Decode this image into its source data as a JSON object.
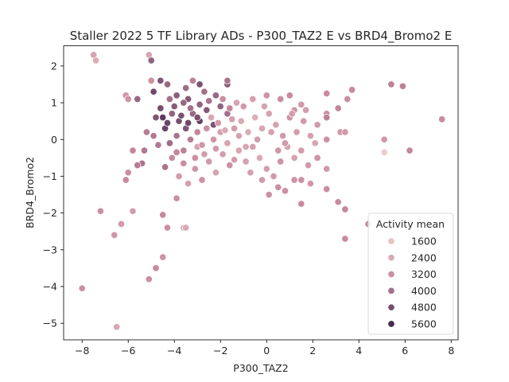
{
  "chart_data": {
    "type": "scatter",
    "title": "Staller 2022 5 TF Library ADs - P300_TAZ2 E vs BRD4_Bromo2 E",
    "xlabel": "P300_TAZ2",
    "ylabel": "BRD4_Bromo2",
    "xlim": [
      -8.8,
      8.3
    ],
    "ylim": [
      -5.45,
      2.55
    ],
    "xticks": [
      -8,
      -6,
      -4,
      -2,
      0,
      2,
      4,
      6,
      8
    ],
    "yticks": [
      -5,
      -4,
      -3,
      -2,
      -1,
      0,
      1,
      2
    ],
    "grid": false,
    "legend": {
      "title": "Activity mean",
      "placement": "lower-right",
      "entries": [
        {
          "label": "1600",
          "value": 1600
        },
        {
          "label": "2400",
          "value": 2400
        },
        {
          "label": "3200",
          "value": 3200
        },
        {
          "label": "4000",
          "value": 4000
        },
        {
          "label": "4800",
          "value": 4800
        },
        {
          "label": "5600",
          "value": 5600
        }
      ]
    },
    "color_scale": {
      "min": 800,
      "max": 6000,
      "low_color": "#f4dcd6",
      "mid_color": "#c98a9f",
      "high_color": "#2d1a42"
    },
    "points": [
      {
        "x": -7.5,
        "y": 2.3,
        "v": 2600
      },
      {
        "x": -7.4,
        "y": 2.15,
        "v": 2300
      },
      {
        "x": -5.1,
        "y": 2.3,
        "v": 2500
      },
      {
        "x": -5.0,
        "y": 2.15,
        "v": 4300
      },
      {
        "x": -8.0,
        "y": -4.05,
        "v": 3200
      },
      {
        "x": -6.5,
        "y": -5.1,
        "v": 2500
      },
      {
        "x": -7.2,
        "y": -1.95,
        "v": 3300
      },
      {
        "x": -6.6,
        "y": -2.6,
        "v": 3000
      },
      {
        "x": -6.3,
        "y": -2.3,
        "v": 2900
      },
      {
        "x": -5.8,
        "y": -1.95,
        "v": 2800
      },
      {
        "x": -5.1,
        "y": -3.8,
        "v": 3300
      },
      {
        "x": -4.8,
        "y": -3.5,
        "v": 3400
      },
      {
        "x": -4.5,
        "y": -3.2,
        "v": 3100
      },
      {
        "x": -4.3,
        "y": -2.4,
        "v": 3200
      },
      {
        "x": -4.5,
        "y": -2.05,
        "v": 3400
      },
      {
        "x": -3.9,
        "y": -1.6,
        "v": 3300
      },
      {
        "x": -3.6,
        "y": -2.4,
        "v": 2200
      },
      {
        "x": -3.5,
        "y": -2.4,
        "v": 2400
      },
      {
        "x": -6.1,
        "y": 1.2,
        "v": 3000
      },
      {
        "x": -6.0,
        "y": 1.1,
        "v": 3100
      },
      {
        "x": -5.6,
        "y": 1.1,
        "v": 4200
      },
      {
        "x": -5.0,
        "y": 1.6,
        "v": 3200
      },
      {
        "x": -4.6,
        "y": 1.6,
        "v": 4600
      },
      {
        "x": -4.9,
        "y": 1.3,
        "v": 4900
      },
      {
        "x": -4.3,
        "y": 1.5,
        "v": 4200
      },
      {
        "x": -4.2,
        "y": 1.1,
        "v": 4000
      },
      {
        "x": -3.9,
        "y": 1.2,
        "v": 4400
      },
      {
        "x": -3.5,
        "y": 1.4,
        "v": 4100
      },
      {
        "x": -3.4,
        "y": 1.1,
        "v": 4500
      },
      {
        "x": -3.2,
        "y": 1.6,
        "v": 3600
      },
      {
        "x": -2.9,
        "y": 1.5,
        "v": 4700
      },
      {
        "x": -1.7,
        "y": 1.5,
        "v": 4500
      },
      {
        "x": -1.7,
        "y": 1.6,
        "v": 3900
      },
      {
        "x": -4.5,
        "y": 0.6,
        "v": 5200
      },
      {
        "x": -4.8,
        "y": 0.6,
        "v": 4600
      },
      {
        "x": -4.4,
        "y": 0.3,
        "v": 5000
      },
      {
        "x": -4.1,
        "y": 0.7,
        "v": 4300
      },
      {
        "x": -3.8,
        "y": 0.5,
        "v": 4800
      },
      {
        "x": -3.5,
        "y": 0.3,
        "v": 4600
      },
      {
        "x": -3.2,
        "y": 0.7,
        "v": 4200
      },
      {
        "x": -2.9,
        "y": 0.5,
        "v": 5100
      },
      {
        "x": -2.6,
        "y": 0.8,
        "v": 4500
      },
      {
        "x": -2.3,
        "y": 0.4,
        "v": 4700
      },
      {
        "x": -2.0,
        "y": 0.9,
        "v": 4300
      },
      {
        "x": -1.7,
        "y": 0.7,
        "v": 4000
      },
      {
        "x": -4.9,
        "y": 0.1,
        "v": 3800
      },
      {
        "x": -4.2,
        "y": -0.1,
        "v": 4100
      },
      {
        "x": -3.9,
        "y": 0.1,
        "v": 3900
      },
      {
        "x": -3.6,
        "y": -0.3,
        "v": 3600
      },
      {
        "x": -3.3,
        "y": 0.0,
        "v": 3700
      },
      {
        "x": -3.0,
        "y": 0.2,
        "v": 3500
      },
      {
        "x": -5.3,
        "y": -0.3,
        "v": 3800
      },
      {
        "x": -5.4,
        "y": -0.65,
        "v": 3900
      },
      {
        "x": -6.0,
        "y": -0.9,
        "v": 3300
      },
      {
        "x": -6.1,
        "y": -1.1,
        "v": 3400
      },
      {
        "x": -5.6,
        "y": -0.7,
        "v": 3700
      },
      {
        "x": -4.4,
        "y": -0.75,
        "v": 3900
      },
      {
        "x": -4.1,
        "y": -0.5,
        "v": 3400
      },
      {
        "x": -3.8,
        "y": -1.0,
        "v": 2800
      },
      {
        "x": -3.4,
        "y": -1.2,
        "v": 2700
      },
      {
        "x": -3.1,
        "y": -0.8,
        "v": 3000
      },
      {
        "x": -2.8,
        "y": -1.1,
        "v": 3100
      },
      {
        "x": -2.5,
        "y": -0.6,
        "v": 2900
      },
      {
        "x": -2.2,
        "y": -0.9,
        "v": 2600
      },
      {
        "x": -1.9,
        "y": -0.4,
        "v": 2800
      },
      {
        "x": -1.6,
        "y": -0.7,
        "v": 3200
      },
      {
        "x": -1.2,
        "y": -0.3,
        "v": 2500
      },
      {
        "x": -0.9,
        "y": -0.6,
        "v": 2700
      },
      {
        "x": -0.6,
        "y": -0.2,
        "v": 2600
      },
      {
        "x": -0.3,
        "y": -0.5,
        "v": 2400
      },
      {
        "x": 0.0,
        "y": -0.8,
        "v": 2800
      },
      {
        "x": 0.3,
        "y": -1.0,
        "v": 2900
      },
      {
        "x": 0.6,
        "y": -0.6,
        "v": 3100
      },
      {
        "x": 0.9,
        "y": -0.2,
        "v": 2700
      },
      {
        "x": 1.2,
        "y": -0.5,
        "v": 2600
      },
      {
        "x": 1.5,
        "y": -0.3,
        "v": 2800
      },
      {
        "x": 1.8,
        "y": -0.7,
        "v": 2900
      },
      {
        "x": 2.1,
        "y": -0.1,
        "v": 2500
      },
      {
        "x": 2.6,
        "y": -0.8,
        "v": 3000
      },
      {
        "x": 0.1,
        "y": -1.5,
        "v": 3200
      },
      {
        "x": 0.5,
        "y": -1.3,
        "v": 3300
      },
      {
        "x": 1.2,
        "y": -1.1,
        "v": 3100
      },
      {
        "x": 1.5,
        "y": -1.1,
        "v": 3200
      },
      {
        "x": 1.5,
        "y": -1.75,
        "v": 3400
      },
      {
        "x": 1.9,
        "y": -1.2,
        "v": 3000
      },
      {
        "x": 2.6,
        "y": -1.35,
        "v": 3300
      },
      {
        "x": 3.1,
        "y": -1.7,
        "v": 3400
      },
      {
        "x": 3.4,
        "y": -1.9,
        "v": 3500
      },
      {
        "x": 3.4,
        "y": -2.7,
        "v": 3400
      },
      {
        "x": 4.4,
        "y": -2.3,
        "v": 3300
      },
      {
        "x": -2.6,
        "y": 0.3,
        "v": 3200
      },
      {
        "x": -2.3,
        "y": 0.0,
        "v": 3000
      },
      {
        "x": -2.0,
        "y": 0.2,
        "v": 2700
      },
      {
        "x": -1.7,
        "y": -0.1,
        "v": 2600
      },
      {
        "x": -1.4,
        "y": 0.3,
        "v": 2800
      },
      {
        "x": -1.1,
        "y": 0.5,
        "v": 2400
      },
      {
        "x": -0.8,
        "y": 0.2,
        "v": 2300
      },
      {
        "x": -0.5,
        "y": 0.6,
        "v": 2200
      },
      {
        "x": -0.2,
        "y": 0.3,
        "v": 2500
      },
      {
        "x": 0.1,
        "y": 0.7,
        "v": 2600
      },
      {
        "x": 0.4,
        "y": 0.4,
        "v": 2700
      },
      {
        "x": 0.7,
        "y": 0.1,
        "v": 2900
      },
      {
        "x": 1.0,
        "y": 0.6,
        "v": 3100
      },
      {
        "x": 1.3,
        "y": 0.2,
        "v": 2800
      },
      {
        "x": 1.6,
        "y": 0.5,
        "v": 3000
      },
      {
        "x": 1.9,
        "y": 0.1,
        "v": 2700
      },
      {
        "x": 2.2,
        "y": 0.4,
        "v": 2900
      },
      {
        "x": -1.9,
        "y": 1.1,
        "v": 3300
      },
      {
        "x": -1.3,
        "y": 1.0,
        "v": 2600
      },
      {
        "x": -1.0,
        "y": 0.9,
        "v": 2900
      },
      {
        "x": -0.6,
        "y": 1.1,
        "v": 2700
      },
      {
        "x": 0.0,
        "y": 1.2,
        "v": 3100
      },
      {
        "x": 0.6,
        "y": 1.1,
        "v": 3300
      },
      {
        "x": 1.0,
        "y": 1.2,
        "v": 3400
      },
      {
        "x": 1.2,
        "y": 0.8,
        "v": 3000
      },
      {
        "x": 1.5,
        "y": 0.95,
        "v": 2900
      },
      {
        "x": 1.1,
        "y": 0.7,
        "v": 2800
      },
      {
        "x": 2.6,
        "y": 1.25,
        "v": 3400
      },
      {
        "x": 2.6,
        "y": 0.7,
        "v": 3300
      },
      {
        "x": 2.6,
        "y": 0.6,
        "v": 3600
      },
      {
        "x": 2.6,
        "y": 0.0,
        "v": 3200
      },
      {
        "x": 3.1,
        "y": 0.85,
        "v": 3500
      },
      {
        "x": 3.2,
        "y": 0.2,
        "v": 3000
      },
      {
        "x": 3.4,
        "y": 0.2,
        "v": 2900
      },
      {
        "x": 3.5,
        "y": 1.1,
        "v": 3300
      },
      {
        "x": 3.7,
        "y": 1.35,
        "v": 3400
      },
      {
        "x": 5.1,
        "y": 0.0,
        "v": 3000
      },
      {
        "x": 5.1,
        "y": -0.35,
        "v": 1300
      },
      {
        "x": 5.4,
        "y": 1.5,
        "v": 3600
      },
      {
        "x": 5.9,
        "y": 1.45,
        "v": 3600
      },
      {
        "x": 6.2,
        "y": -0.3,
        "v": 3500
      },
      {
        "x": 7.6,
        "y": 0.55,
        "v": 3400
      },
      {
        "x": -3.0,
        "y": -0.2,
        "v": 2600
      },
      {
        "x": -2.7,
        "y": -0.4,
        "v": 2800
      },
      {
        "x": -2.4,
        "y": 0.6,
        "v": 2500
      },
      {
        "x": -2.1,
        "y": 0.45,
        "v": 2900
      },
      {
        "x": -1.8,
        "y": 0.25,
        "v": 2400
      },
      {
        "x": -1.5,
        "y": 0.55,
        "v": 2700
      },
      {
        "x": -1.2,
        "y": 0.1,
        "v": 2600
      },
      {
        "x": -0.9,
        "y": -0.2,
        "v": 2500
      },
      {
        "x": -0.4,
        "y": 0.0,
        "v": 2800
      },
      {
        "x": 0.2,
        "y": 0.2,
        "v": 2700
      },
      {
        "x": 0.5,
        "y": -0.3,
        "v": 3000
      },
      {
        "x": 0.8,
        "y": -0.1,
        "v": 2900
      },
      {
        "x": -3.3,
        "y": 0.85,
        "v": 4000
      },
      {
        "x": -2.9,
        "y": 0.95,
        "v": 4300
      },
      {
        "x": -2.5,
        "y": 1.05,
        "v": 3900
      },
      {
        "x": -2.2,
        "y": 1.2,
        "v": 4200
      },
      {
        "x": -4.0,
        "y": 0.9,
        "v": 4500
      },
      {
        "x": -3.7,
        "y": 0.65,
        "v": 4700
      },
      {
        "x": -3.4,
        "y": 0.45,
        "v": 4900
      },
      {
        "x": -4.6,
        "y": 0.85,
        "v": 4800
      },
      {
        "x": -5.8,
        "y": -0.3,
        "v": 3500
      },
      {
        "x": -5.2,
        "y": 0.2,
        "v": 3700
      },
      {
        "x": -4.7,
        "y": -0.15,
        "v": 3800
      },
      {
        "x": -3.9,
        "y": -0.35,
        "v": 3500
      },
      {
        "x": -3.6,
        "y": -0.65,
        "v": 3300
      },
      {
        "x": -3.1,
        "y": -0.5,
        "v": 3200
      },
      {
        "x": -2.8,
        "y": -0.15,
        "v": 3000
      },
      {
        "x": -2.2,
        "y": -0.25,
        "v": 2900
      },
      {
        "x": -1.4,
        "y": -0.55,
        "v": 2800
      },
      {
        "x": -0.7,
        "y": -0.9,
        "v": 2700
      },
      {
        "x": -0.2,
        "y": -1.1,
        "v": 2900
      },
      {
        "x": 0.8,
        "y": -1.4,
        "v": 3200
      },
      {
        "x": 2.2,
        "y": -0.5,
        "v": 3100
      },
      {
        "x": 1.7,
        "y": 0.8,
        "v": 2800
      },
      {
        "x": -0.1,
        "y": 0.9,
        "v": 2600
      },
      {
        "x": -1.6,
        "y": 0.85,
        "v": 3500
      },
      {
        "x": -2.7,
        "y": 1.3,
        "v": 4000
      },
      {
        "x": -3.6,
        "y": 1.0,
        "v": 4200
      },
      {
        "x": -4.3,
        "y": 0.45,
        "v": 5000
      },
      {
        "x": -3.0,
        "y": 0.6,
        "v": 4700
      }
    ]
  }
}
